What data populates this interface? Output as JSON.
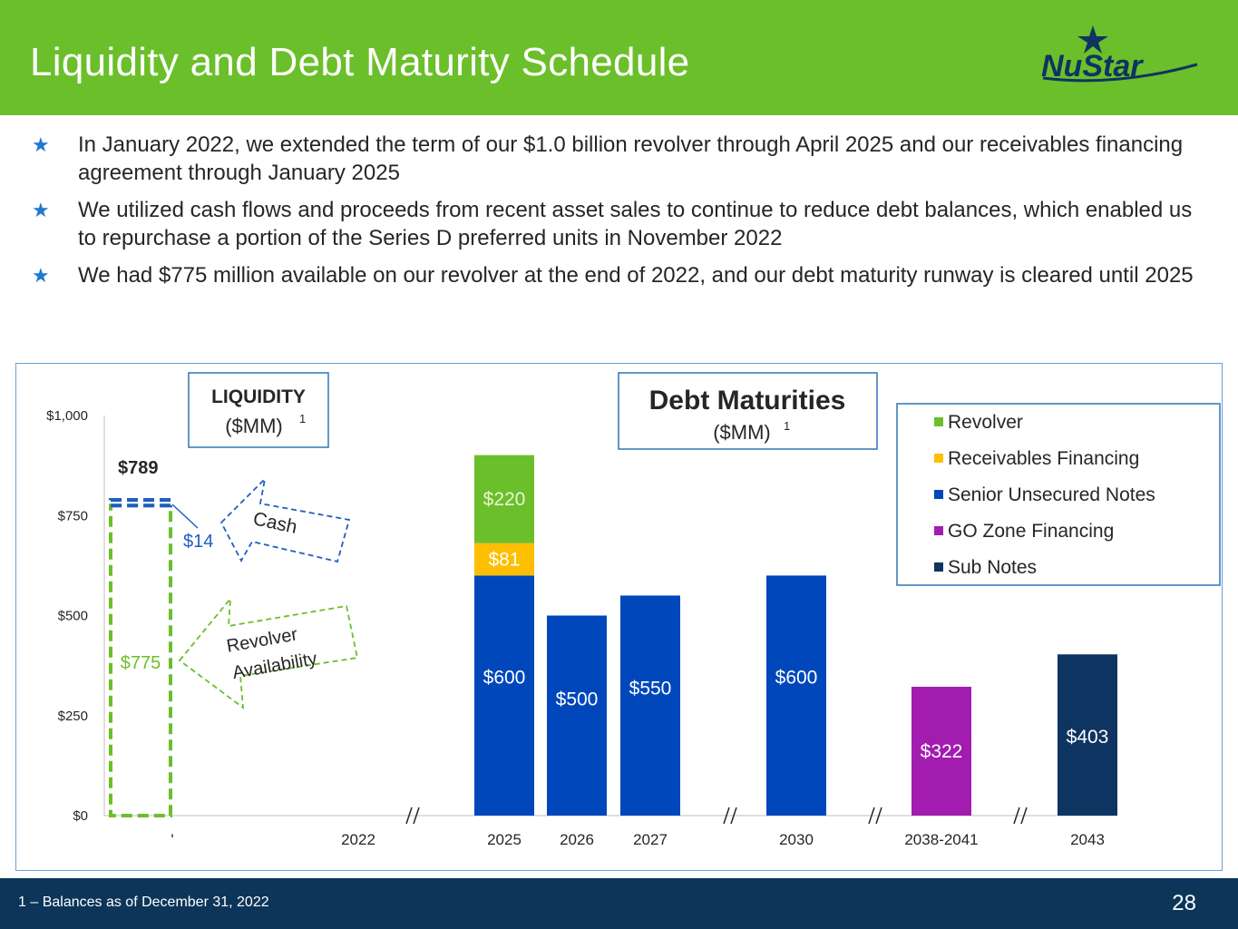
{
  "slide": {
    "title": "Liquidity and Debt Maturity Schedule",
    "logo_text": "NuStar",
    "page_number": "28",
    "footnote": "1 – Balances as of December 31, 2022"
  },
  "bullets": [
    "In January 2022, we extended the term of our $1.0 billion revolver through April 2025 and our receivables financing agreement through January 2025",
    "We utilized cash flows and proceeds from recent asset sales to continue to reduce debt balances, which enabled us to repurchase a portion of the Series D preferred units in November 2022",
    "We had $775 million available on our revolver at the end of 2022, and our debt maturity runway is cleared until 2025"
  ],
  "colors": {
    "header_green": "#6bbf2a",
    "footer_navy": "#0d3559",
    "bullet_star": "#1f78d1",
    "revolver": "#6bbf2a",
    "receivables": "#fdbf00",
    "senior_notes": "#0047bb",
    "go_zone": "#a21caf",
    "sub_notes": "#0e3461"
  },
  "chart_data": {
    "type": "bar",
    "title": "Debt Maturities",
    "subtitle": "($MM)1",
    "liquidity_box": {
      "title": "LIQUIDITY",
      "subtitle": "($MM)1"
    },
    "y_axis": {
      "min": 0,
      "max": 1000,
      "ticks": [
        0,
        250,
        500,
        750,
        1000
      ],
      "tick_labels": [
        "$0",
        "$250",
        "$500",
        "$750",
        "$1,000"
      ]
    },
    "categories": [
      "'",
      "2022",
      "2025",
      "2026",
      "2027",
      "2030",
      "2038-2041",
      "2043"
    ],
    "axis_breaks_after": [
      "2022",
      "2027",
      "2030",
      "2038-2041"
    ],
    "liquidity": {
      "total": 789,
      "total_label": "$789",
      "revolver_availability": 775,
      "revolver_label": "$775",
      "cash": 14,
      "cash_label": "$14",
      "cash_arrow_label": "Cash",
      "revolver_arrow_label_1": "Revolver",
      "revolver_arrow_label_2": "Availability"
    },
    "series": [
      {
        "name": "Revolver",
        "color": "#6bbf2a",
        "points": [
          {
            "category": "2025",
            "value": 220,
            "label": "$220"
          }
        ]
      },
      {
        "name": "Receivables Financing",
        "color": "#fdbf00",
        "points": [
          {
            "category": "2025",
            "value": 81,
            "label": "$81"
          }
        ]
      },
      {
        "name": "Senior Unsecured Notes",
        "color": "#0047bb",
        "points": [
          {
            "category": "2025",
            "value": 600,
            "label": "$600"
          },
          {
            "category": "2026",
            "value": 500,
            "label": "$500"
          },
          {
            "category": "2027",
            "value": 550,
            "label": "$550"
          },
          {
            "category": "2030",
            "value": 600,
            "label": "$600"
          }
        ]
      },
      {
        "name": "GO Zone Financing",
        "color": "#a21caf",
        "points": [
          {
            "category": "2038-2041",
            "value": 322,
            "label": "$322"
          }
        ]
      },
      {
        "name": "Sub Notes",
        "color": "#0e3461",
        "points": [
          {
            "category": "2043",
            "value": 403,
            "label": "$403"
          }
        ]
      }
    ],
    "legend": [
      "Revolver",
      "Receivables Financing",
      "Senior Unsecured Notes",
      "GO Zone Financing",
      "Sub Notes"
    ],
    "legend_position": "top-right"
  }
}
